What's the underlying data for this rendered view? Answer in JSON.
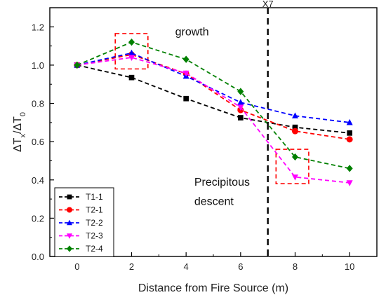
{
  "chart_data": {
    "type": "line",
    "title": "",
    "xlabel": "Distance from Fire Source (m)",
    "ylabel_parts": {
      "delta1": "ΔT",
      "sub1": "x",
      "slash": "/ΔT",
      "sub2": "0"
    },
    "xlim": [
      -1,
      11
    ],
    "ylim": [
      0,
      1.3
    ],
    "xticks": [
      0,
      2,
      4,
      6,
      8,
      10
    ],
    "yticks": [
      0.0,
      0.2,
      0.4,
      0.6,
      0.8,
      1.0,
      1.2
    ],
    "ytick_labels": [
      "0.0",
      "0.2",
      "0.4",
      "0.6",
      "0.8",
      "1.0",
      "1.2"
    ],
    "x": [
      0,
      2,
      4,
      6,
      8,
      10
    ],
    "series": [
      {
        "name": "T1-1",
        "color": "#000000",
        "marker": "square",
        "values": [
          1.0,
          0.935,
          0.825,
          0.725,
          0.675,
          0.645
        ]
      },
      {
        "name": "T2-1",
        "color": "#ff0000",
        "marker": "circle",
        "values": [
          1.0,
          1.055,
          0.955,
          0.765,
          0.655,
          0.612
        ]
      },
      {
        "name": "T2-2",
        "color": "#0000ff",
        "marker": "triangle-up",
        "values": [
          1.0,
          1.063,
          0.942,
          0.805,
          0.735,
          0.7
        ]
      },
      {
        "name": "T2-3",
        "color": "#ff00ff",
        "marker": "triangle-down",
        "values": [
          1.0,
          1.04,
          0.958,
          0.78,
          0.415,
          0.385
        ]
      },
      {
        "name": "T2-4",
        "color": "#008000",
        "marker": "diamond",
        "values": [
          1.0,
          1.12,
          1.03,
          0.862,
          0.52,
          0.46
        ]
      }
    ],
    "vline": {
      "x": 7,
      "label": "X7",
      "color": "#000000"
    },
    "annotations": [
      {
        "text": "growth",
        "x": 3.6,
        "y": 1.155
      },
      {
        "text": "Precipitous",
        "x": 4.3,
        "y": 0.37
      },
      {
        "text": "descent",
        "x": 4.3,
        "y": 0.27
      }
    ],
    "highlight_boxes": [
      {
        "x": [
          1.4,
          2.6
        ],
        "y": [
          0.98,
          1.165
        ],
        "color": "#ff0000"
      },
      {
        "x": [
          7.3,
          8.5
        ],
        "y": [
          0.38,
          0.56
        ],
        "color": "#ff0000"
      }
    ],
    "legend_position": "bottom-left",
    "grid": false
  }
}
